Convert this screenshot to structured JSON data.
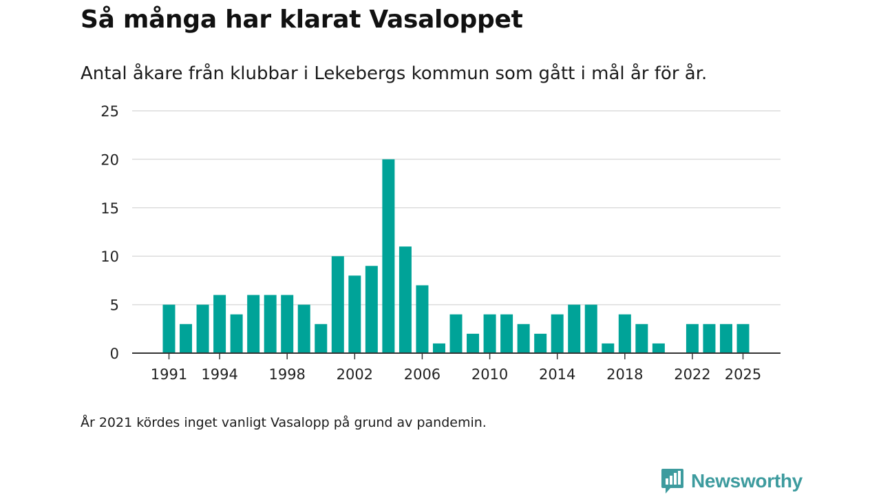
{
  "title": "Så många har klarat Vasaloppet",
  "subtitle": "Antal åkare från klubbar i Lekebergs kommun som gått i mål år för år.",
  "footnote": "År 2021 kördes inget vanligt Vasalopp på grund av pandemin.",
  "brand": {
    "name": "Newsworthy",
    "icon": "newsworthy-logo-icon",
    "color": "#3d9b9e"
  },
  "chart_data": {
    "type": "bar",
    "bar_color": "#00a398",
    "grid": true,
    "years": [
      1991,
      1992,
      1993,
      1994,
      1995,
      1996,
      1997,
      1998,
      1999,
      2000,
      2001,
      2002,
      2003,
      2004,
      2005,
      2006,
      2007,
      2008,
      2009,
      2010,
      2011,
      2012,
      2013,
      2014,
      2015,
      2016,
      2017,
      2018,
      2019,
      2020,
      2021,
      2022,
      2023,
      2024,
      2025
    ],
    "values": [
      5,
      3,
      5,
      6,
      4,
      6,
      6,
      6,
      5,
      3,
      10,
      8,
      9,
      20,
      11,
      7,
      1,
      4,
      2,
      4,
      4,
      3,
      2,
      4,
      5,
      5,
      1,
      4,
      3,
      1,
      0,
      3,
      3,
      3,
      3
    ],
    "x_tick_labels": [
      "1991",
      "1994",
      "1998",
      "2002",
      "2006",
      "2010",
      "2014",
      "2018",
      "2022",
      "2025"
    ],
    "y_ticks": [
      0,
      5,
      10,
      15,
      20,
      25
    ],
    "ylim": [
      0,
      25
    ],
    "xlabel": "",
    "ylabel": ""
  }
}
